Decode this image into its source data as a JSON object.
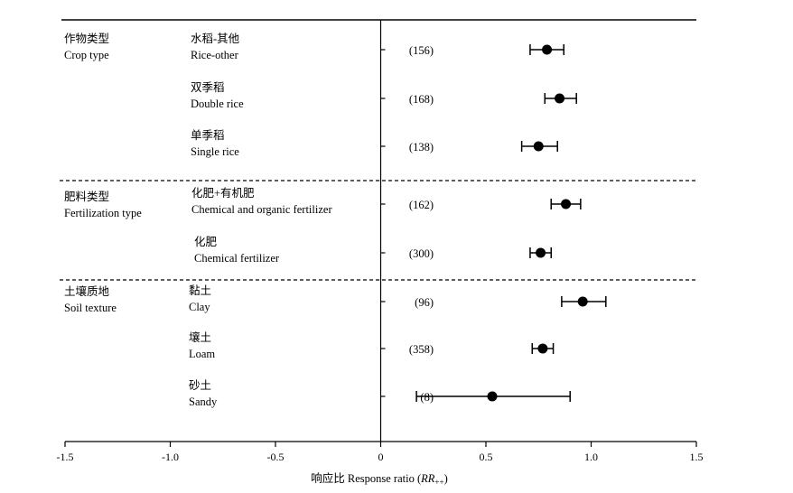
{
  "chart_data": {
    "type": "forest",
    "xlabel_prefix": "响应比 Response ratio (",
    "xlabel_italic": "RR",
    "xlabel_sub": "++",
    "xlabel_suffix": ")",
    "xlim": [
      -1.5,
      1.5
    ],
    "xticks": [
      -1.5,
      -1.0,
      -0.5,
      0,
      0.5,
      1.0,
      1.5
    ],
    "xtick_labels": [
      "-1.5",
      "-1.0",
      "-0.5",
      "0",
      "0.5",
      "1.0",
      "1.5"
    ],
    "groups": [
      {
        "name_cn": "作物类型",
        "name_en": "Crop type",
        "rows": [
          {
            "cn": "水稻-其他",
            "en": "Rice-other",
            "n": "(156)",
            "mean": 0.79,
            "lo": 0.71,
            "hi": 0.87
          },
          {
            "cn": "双季稻",
            "en": "Double rice",
            "n": "(168)",
            "mean": 0.85,
            "lo": 0.78,
            "hi": 0.93
          },
          {
            "cn": "单季稻",
            "en": "Single rice",
            "n": "(138)",
            "mean": 0.75,
            "lo": 0.67,
            "hi": 0.84
          }
        ]
      },
      {
        "name_cn": "肥料类型",
        "name_en": "Fertilization type",
        "rows": [
          {
            "cn": "化肥+有机肥",
            "en": "Chemical and organic fertilizer",
            "n": "(162)",
            "mean": 0.88,
            "lo": 0.81,
            "hi": 0.95
          },
          {
            "cn": "化肥",
            "en": "Chemical fertilizer",
            "n": "(300)",
            "mean": 0.76,
            "lo": 0.71,
            "hi": 0.81
          }
        ]
      },
      {
        "name_cn": "土壤质地",
        "name_en": "Soil texture",
        "rows": [
          {
            "cn": "黏土",
            "en": "Clay",
            "n": "(96)",
            "mean": 0.96,
            "lo": 0.86,
            "hi": 1.07
          },
          {
            "cn": "壤土",
            "en": "Loam",
            "n": "(358)",
            "mean": 0.77,
            "lo": 0.72,
            "hi": 0.82
          },
          {
            "cn": "砂土",
            "en": "Sandy",
            "n": "(8)",
            "mean": 0.53,
            "lo": 0.17,
            "hi": 0.9
          }
        ]
      }
    ]
  }
}
